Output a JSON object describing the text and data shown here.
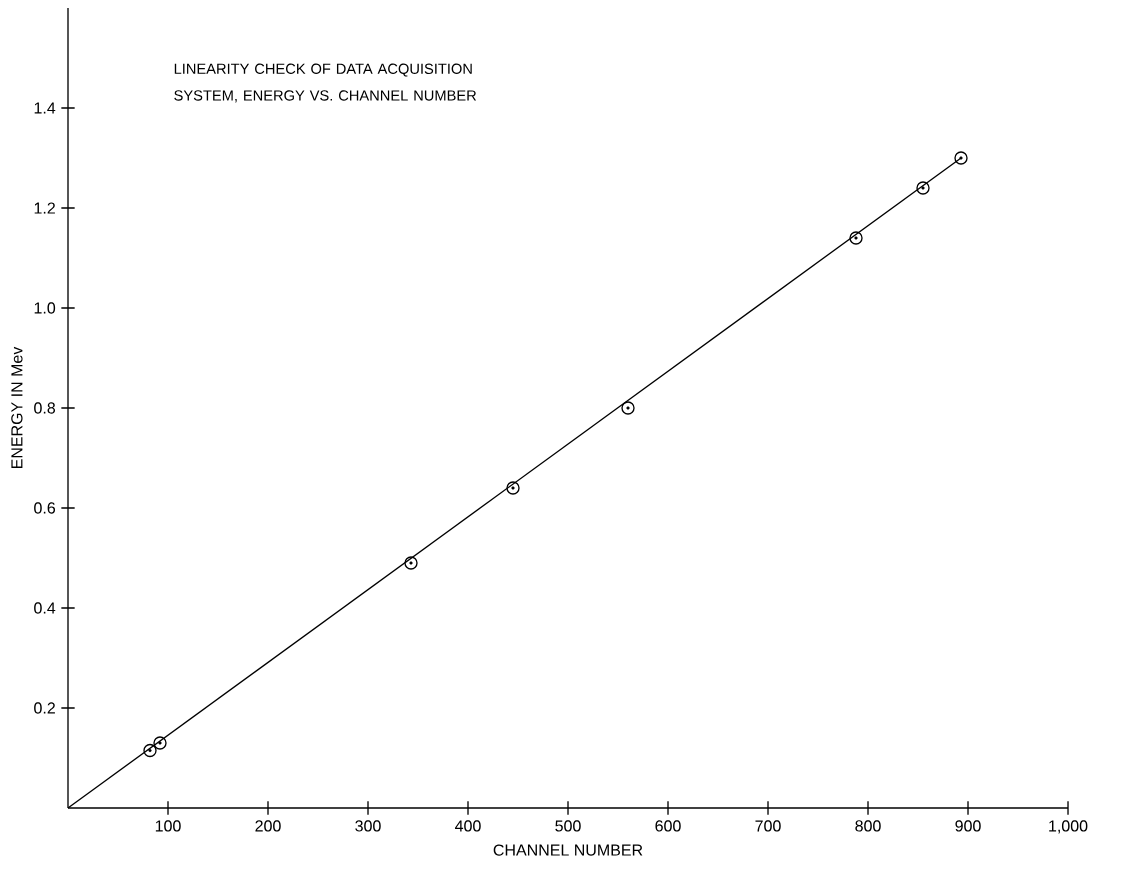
{
  "chart_data": {
    "type": "scatter",
    "title": "LINEARITY CHECK OF DATA ACQUISITION SYSTEM, ENERGY VS. CHANNEL NUMBER",
    "xlabel": "CHANNEL NUMBER",
    "ylabel": "ENERGY IN Mev",
    "xlim": [
      0,
      1000
    ],
    "ylim": [
      0,
      1.6
    ],
    "xticks": [
      100,
      200,
      300,
      400,
      500,
      600,
      700,
      800,
      900,
      {
        "value": 1000,
        "label": "1,000"
      }
    ],
    "yticks": [
      0.2,
      0.4,
      0.6,
      0.8,
      {
        "value": 1.0,
        "label": "1.0"
      },
      1.2,
      1.4
    ],
    "grid": false,
    "series": [
      {
        "marker": "circle",
        "color": "#000000",
        "x": [
          82,
          92,
          343,
          445,
          560,
          788,
          855,
          893
        ],
        "values": [
          0.115,
          0.13,
          0.49,
          0.64,
          0.8,
          1.14,
          1.24,
          1.3
        ]
      },
      {
        "type": "line",
        "line_style": "solid",
        "color": "#000000",
        "x": [
          0,
          893
        ],
        "values": [
          0,
          1.3
        ]
      }
    ]
  }
}
